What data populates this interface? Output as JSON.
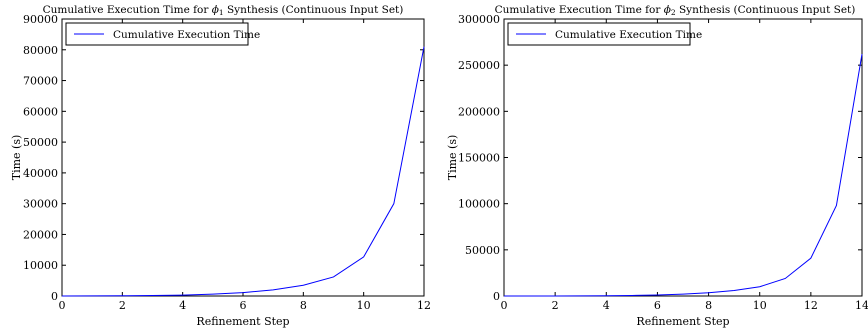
{
  "chart_data": [
    {
      "type": "line",
      "title_main": "Cumulative Execution Time for ",
      "title_sym": "ϕ",
      "title_sub": "1",
      "title_rest": " Synthesis (Continuous Input Set)",
      "xlabel": "Refinement Step",
      "ylabel": "Time (s)",
      "xlim": [
        0,
        12
      ],
      "ylim": [
        0,
        90000
      ],
      "xticks": [
        "0",
        "2",
        "4",
        "6",
        "8",
        "10",
        "12"
      ],
      "yticks": [
        "0",
        "10000",
        "20000",
        "30000",
        "40000",
        "50000",
        "60000",
        "70000",
        "80000",
        "90000"
      ],
      "legend_position": "top-left",
      "series": [
        {
          "name": "Cumulative Execution Time",
          "color": "#0000ff",
          "x": [
            0,
            1,
            2,
            3,
            4,
            5,
            6,
            7,
            8,
            9,
            10,
            11,
            12
          ],
          "values": [
            0,
            30,
            80,
            150,
            300,
            600,
            1100,
            2000,
            3500,
            6200,
            12700,
            30000,
            81000
          ]
        }
      ]
    },
    {
      "type": "line",
      "title_main": "Cumulative Execution Time for ",
      "title_sym": "ϕ",
      "title_sub": "2",
      "title_rest": " Synthesis (Continuous Input Set)",
      "xlabel": "Refinement Step",
      "ylabel": "Time (s)",
      "xlim": [
        0,
        14
      ],
      "ylim": [
        0,
        300000
      ],
      "xticks": [
        "0",
        "2",
        "4",
        "6",
        "8",
        "10",
        "12",
        "14"
      ],
      "yticks": [
        "0",
        "50000",
        "100000",
        "150000",
        "200000",
        "250000",
        "300000"
      ],
      "legend_position": "top-left",
      "series": [
        {
          "name": "Cumulative Execution Time",
          "color": "#0000ff",
          "x": [
            0,
            1,
            2,
            3,
            4,
            5,
            6,
            7,
            8,
            9,
            10,
            11,
            12,
            13,
            14
          ],
          "values": [
            0,
            20,
            60,
            150,
            300,
            600,
            1100,
            2000,
            3500,
            6000,
            10000,
            19000,
            41000,
            98000,
            262000
          ]
        }
      ]
    }
  ]
}
